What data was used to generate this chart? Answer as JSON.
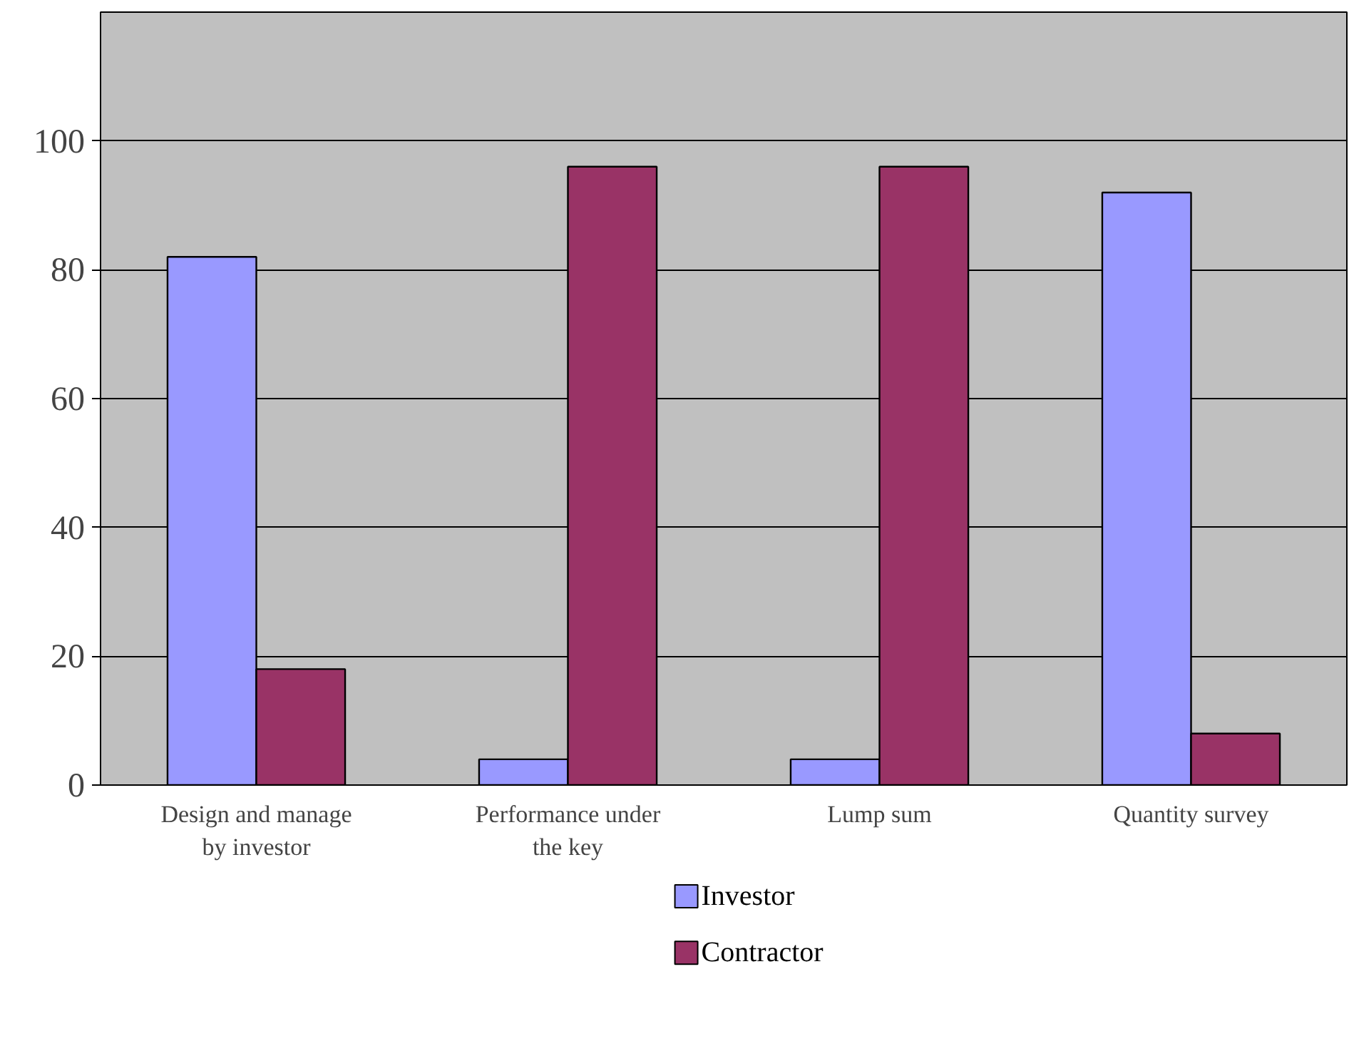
{
  "chart_data": {
    "type": "bar",
    "categories": [
      "Design and manage by investor",
      "Performance under the key",
      "Lump sum",
      "Quantity survey"
    ],
    "series": [
      {
        "name": "Investor",
        "color": "#9999ff",
        "values": [
          82,
          4,
          4,
          92
        ]
      },
      {
        "name": "Contractor",
        "color": "#993366",
        "values": [
          18,
          96,
          96,
          8
        ]
      }
    ],
    "ylim": [
      0,
      120
    ],
    "yticks": [
      0,
      20,
      40,
      60,
      80,
      100
    ],
    "grid": "y",
    "legend": "bottom"
  }
}
